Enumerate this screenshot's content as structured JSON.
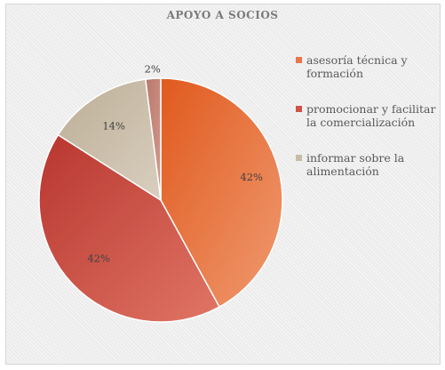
{
  "chart_data": {
    "type": "pie",
    "title": "APOYO A SOCIOS",
    "categories": [
      "asesoría técnica y formación",
      "promocionar y facilitar la comercialización",
      "informar sobre la alimentación",
      ""
    ],
    "values": [
      42,
      42,
      14,
      2
    ],
    "data_labels": [
      "42%",
      "42%",
      "14%",
      "2%"
    ],
    "colors": [
      "#e7774a",
      "#cf5249",
      "#c8bba6",
      "#c8867a"
    ],
    "legend_position": "right"
  },
  "legend": [
    {
      "label": "asesoría técnica y formación",
      "color": "#e7774a"
    },
    {
      "label": "promocionar y facilitar la comercialización",
      "color": "#cf5249"
    },
    {
      "label": "informar sobre la alimentación",
      "color": "#c8bba6"
    }
  ]
}
